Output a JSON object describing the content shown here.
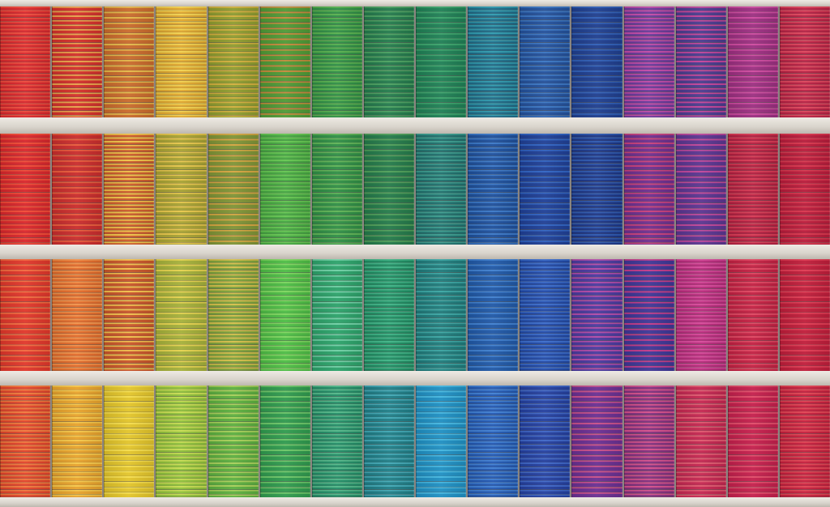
{
  "facade": {
    "rows": [
      {
        "panels": [
          {
            "base": "#d8262b",
            "slat": "#ef4a3c"
          },
          {
            "base": "#d32f2a",
            "slat": "#e9a24a"
          },
          {
            "base": "#c96a2c",
            "slat": "#e5b949"
          },
          {
            "base": "#e0a72e",
            "slat": "#f3d24f"
          },
          {
            "base": "#8f9c2f",
            "slat": "#d3b03c"
          },
          {
            "base": "#4f9a36",
            "slat": "#c58a3a"
          },
          {
            "base": "#2f8f45",
            "slat": "#57b14e"
          },
          {
            "base": "#237a4c",
            "slat": "#4aa160"
          },
          {
            "base": "#1f7f55",
            "slat": "#3aa36a"
          },
          {
            "base": "#1f6a86",
            "slat": "#2f9cb0"
          },
          {
            "base": "#23509a",
            "slat": "#3a76c4"
          },
          {
            "base": "#1f3e8e",
            "slat": "#2f5fb8"
          },
          {
            "base": "#6a3a9a",
            "slat": "#c34aa8"
          },
          {
            "base": "#4a3b8e",
            "slat": "#c5439a"
          },
          {
            "base": "#9b2f80",
            "slat": "#cf4aa0"
          },
          {
            "base": "#b72043",
            "slat": "#e0455c"
          }
        ]
      },
      {
        "panels": [
          {
            "base": "#d8262b",
            "slat": "#f24a35"
          },
          {
            "base": "#c92c2c",
            "slat": "#ea5b3a"
          },
          {
            "base": "#cc5a2b",
            "slat": "#f0c448"
          },
          {
            "base": "#a8a233",
            "slat": "#e8c74b"
          },
          {
            "base": "#7f9436",
            "slat": "#d7a640"
          },
          {
            "base": "#45a641",
            "slat": "#65c751"
          },
          {
            "base": "#2f8e45",
            "slat": "#5fb456"
          },
          {
            "base": "#247a4a",
            "slat": "#4f9f59"
          },
          {
            "base": "#1f6f6c",
            "slat": "#3a9c8e"
          },
          {
            "base": "#1e4f9a",
            "slat": "#3a78c8"
          },
          {
            "base": "#1f3f95",
            "slat": "#3064c4"
          },
          {
            "base": "#1c3584",
            "slat": "#2d58b0"
          },
          {
            "base": "#6e2f8e",
            "slat": "#c9407c"
          },
          {
            "base": "#5a3590",
            "slat": "#c0469a"
          },
          {
            "base": "#b11e3f",
            "slat": "#d93a54"
          },
          {
            "base": "#b81b3a",
            "slat": "#d9344c"
          }
        ]
      },
      {
        "panels": [
          {
            "base": "#e0362a",
            "slat": "#f26a3e"
          },
          {
            "base": "#e26a2a",
            "slat": "#f2924a"
          },
          {
            "base": "#c8552a",
            "slat": "#f2c04c"
          },
          {
            "base": "#a5b03a",
            "slat": "#e6d34e"
          },
          {
            "base": "#7ea23b",
            "slat": "#d6c04a"
          },
          {
            "base": "#4dbd45",
            "slat": "#7dd65e"
          },
          {
            "base": "#2ca26a",
            "slat": "#6fd0a5"
          },
          {
            "base": "#1f8c62",
            "slat": "#3eb486"
          },
          {
            "base": "#1f7a7a",
            "slat": "#3aa6a3"
          },
          {
            "base": "#2058a6",
            "slat": "#3f80d0"
          },
          {
            "base": "#2148a4",
            "slat": "#3a6ccc"
          },
          {
            "base": "#4a3a9e",
            "slat": "#b34aa8"
          },
          {
            "base": "#3e3696",
            "slat": "#c23a8a"
          },
          {
            "base": "#b52a7a",
            "slat": "#d8489a"
          },
          {
            "base": "#c22042",
            "slat": "#e04560"
          },
          {
            "base": "#bf1d3a",
            "slat": "#e03a52"
          }
        ]
      },
      {
        "panels": [
          {
            "base": "#e2432a",
            "slat": "#f27a3c"
          },
          {
            "base": "#e7a22c",
            "slat": "#f6c84a"
          },
          {
            "base": "#e2c42a",
            "slat": "#f5dd4c"
          },
          {
            "base": "#8fbf3a",
            "slat": "#c8de52"
          },
          {
            "base": "#5caf3f",
            "slat": "#a9d15a"
          },
          {
            "base": "#2f9a4e",
            "slat": "#6cc768"
          },
          {
            "base": "#228c66",
            "slat": "#52b889"
          },
          {
            "base": "#1f7d86",
            "slat": "#41a9b6"
          },
          {
            "base": "#1f8fc2",
            "slat": "#43b6e0"
          },
          {
            "base": "#2257b0",
            "slat": "#3f7fd4"
          },
          {
            "base": "#243f9e",
            "slat": "#3e66c8"
          },
          {
            "base": "#6a2f92",
            "slat": "#c94f8a"
          },
          {
            "base": "#82307e",
            "slat": "#d64f8c"
          },
          {
            "base": "#c42650",
            "slat": "#e0586e"
          },
          {
            "base": "#c41f4c",
            "slat": "#e24a68"
          },
          {
            "base": "#c41e3c",
            "slat": "#e24252"
          }
        ]
      }
    ]
  }
}
